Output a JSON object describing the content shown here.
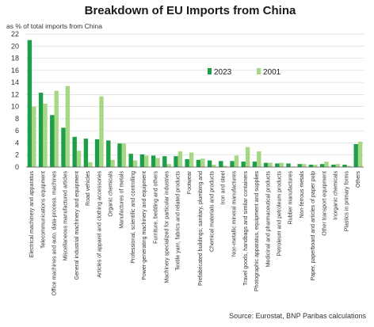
{
  "chart_data": {
    "type": "bar",
    "title": "Breakdown of EU Imports from China",
    "ylabel": "as % of total imports from China",
    "source": "Source: Eurostat, BNP Paribas calculations",
    "ylim": [
      0,
      22
    ],
    "yticks": [
      0,
      2,
      4,
      6,
      8,
      10,
      12,
      14,
      16,
      18,
      20,
      22
    ],
    "grid": true,
    "legend_position": "middle-right",
    "categories": [
      "Electrical machinery and apparatus",
      "Telecommunications equipment",
      "Office machines and auto. data-process. machines",
      "Miscellaneous manufactured articles",
      "General industrial machinery and equipment",
      "Road vehicles",
      "Articles of apparel and clothing accessories",
      "Organic chemicals",
      "Manufactures of metals",
      "Professional, scientific and controlling",
      "Power-generating machinery and equipment",
      "Furniture, bedding and others",
      "Machinery specialized for particular industries",
      "Textile yarn, fabrics and related products",
      "Footwear",
      "Prefabricated buildings; sanitary, plumbing and",
      "Chemical materials and products",
      "Iron and steel",
      "Non-metallic mineral manufactures",
      "Travel goods, handbags and similar containers",
      "Photographic apparatus, equipment and supplies",
      "Medicinal and pharmaceutical products",
      "Petroleum and petroleum products",
      "Rubber manufactures",
      "Non-ferrous metals",
      "Paper, paperboard and articles of paper pulp",
      "Other transport equipment",
      "Inorganic chemicals",
      "Plastics in primary forms",
      "Others"
    ],
    "series": [
      {
        "name": "2023",
        "color": "#1e9e48",
        "values": [
          21.0,
          12.3,
          8.6,
          6.5,
          5.0,
          4.7,
          4.6,
          4.4,
          3.9,
          2.2,
          2.1,
          1.9,
          1.8,
          1.8,
          1.3,
          1.2,
          1.1,
          1.0,
          1.0,
          0.9,
          0.9,
          0.7,
          0.6,
          0.6,
          0.5,
          0.4,
          0.5,
          0.4,
          0.4,
          3.8
        ]
      },
      {
        "name": "2001",
        "color": "#a6d785",
        "values": [
          10.0,
          10.5,
          12.6,
          13.4,
          2.7,
          0.8,
          11.7,
          1.2,
          3.9,
          1.1,
          1.9,
          1.5,
          0.5,
          2.6,
          2.4,
          1.4,
          0.4,
          0.2,
          1.9,
          3.3,
          2.6,
          0.7,
          0.7,
          0.1,
          0.5,
          0.4,
          0.9,
          0.5,
          0.2,
          4.2
        ]
      }
    ]
  }
}
